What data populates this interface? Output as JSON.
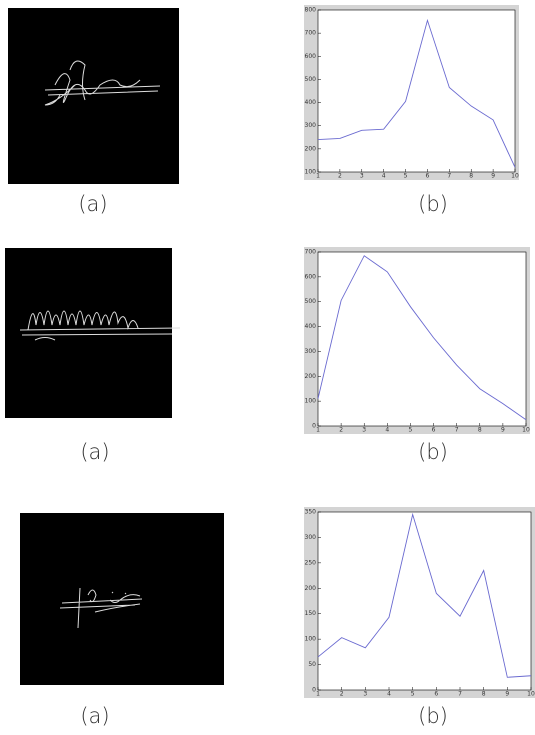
{
  "chart_data": [
    {
      "type": "line",
      "x": [
        1,
        2,
        3,
        4,
        5,
        6,
        7,
        8,
        9,
        10
      ],
      "xlim": [
        1,
        10
      ],
      "xticks": [
        1,
        2,
        3,
        4,
        5,
        6,
        7,
        8,
        9,
        10
      ],
      "ylim": [
        100,
        800
      ],
      "yticks": [
        100,
        200,
        300,
        400,
        500,
        600,
        700,
        800
      ],
      "series": [
        {
          "color": "#6a6ad0",
          "values": [
            240,
            245,
            280,
            285,
            405,
            755,
            465,
            385,
            325,
            120
          ]
        }
      ]
    },
    {
      "type": "line",
      "x": [
        1,
        2,
        3,
        4,
        5,
        6,
        7,
        8,
        9,
        10
      ],
      "xlim": [
        1,
        10
      ],
      "xticks": [
        1,
        2,
        3,
        4,
        5,
        6,
        7,
        8,
        9,
        10
      ],
      "ylim": [
        0,
        700
      ],
      "yticks": [
        0,
        100,
        200,
        300,
        400,
        500,
        600,
        700
      ],
      "series": [
        {
          "color": "#6a6ad0",
          "values": [
            110,
            505,
            685,
            620,
            480,
            355,
            245,
            150,
            90,
            25
          ]
        }
      ]
    },
    {
      "type": "line",
      "x": [
        1,
        2,
        3,
        4,
        5,
        6,
        7,
        8,
        9,
        10
      ],
      "xlim": [
        1,
        10
      ],
      "xticks": [
        1,
        2,
        3,
        4,
        5,
        6,
        7,
        8,
        9,
        10
      ],
      "ylim": [
        0,
        350
      ],
      "yticks": [
        0,
        50,
        100,
        150,
        200,
        250,
        300,
        350
      ],
      "series": [
        {
          "color": "#6a6ad0",
          "values": [
            65,
            103,
            83,
            143,
            345,
            190,
            145,
            235,
            25,
            28
          ]
        }
      ]
    }
  ],
  "panels": [
    {
      "left": "(a)",
      "right": "(b)"
    },
    {
      "left": "(a)",
      "right": "(b)"
    },
    {
      "left": "(a)",
      "right": "(b)"
    }
  ]
}
